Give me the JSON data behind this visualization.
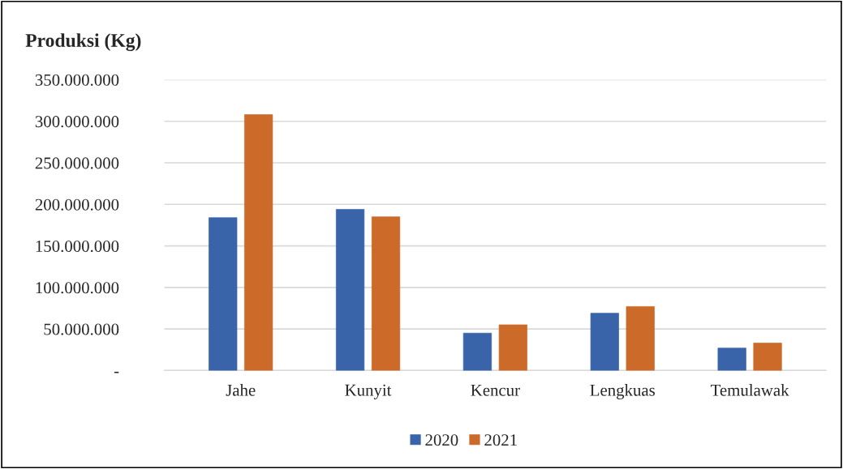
{
  "chart_data": {
    "type": "bar",
    "title": "Produksi (Kg)",
    "categories": [
      "Jahe",
      "Kunyit",
      "Kencur",
      "Lengkuas",
      "Temulawak"
    ],
    "series": [
      {
        "name": "2020",
        "color": "#3a64aa",
        "values": [
          184000000,
          194000000,
          45000000,
          69000000,
          27000000
        ]
      },
      {
        "name": "2021",
        "color": "#cc6a2a",
        "values": [
          308000000,
          185000000,
          55000000,
          77000000,
          33000000
        ]
      }
    ],
    "ylim": [
      0,
      350000000
    ],
    "yticks": [
      {
        "value": 0,
        "label": "-"
      },
      {
        "value": 50000000,
        "label": "50.000.000"
      },
      {
        "value": 100000000,
        "label": "100.000.000"
      },
      {
        "value": 150000000,
        "label": "150.000.000"
      },
      {
        "value": 200000000,
        "label": "200.000.000"
      },
      {
        "value": 250000000,
        "label": "250.000.000"
      },
      {
        "value": 300000000,
        "label": "300.000.000"
      },
      {
        "value": 350000000,
        "label": "350.000.000"
      }
    ],
    "grid": "y",
    "legend": "bottom"
  }
}
